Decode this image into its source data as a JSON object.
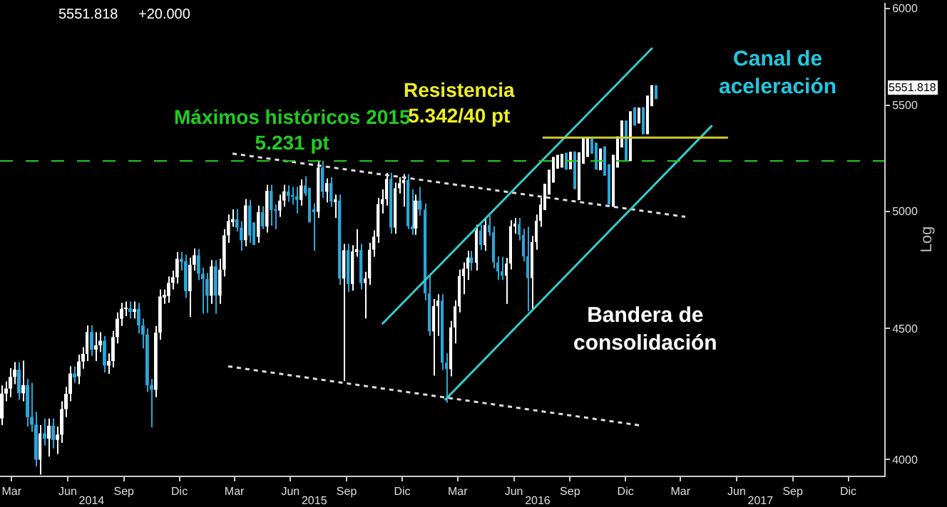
{
  "chart_data": {
    "type": "candlestick",
    "ylabel": "Log",
    "log": true,
    "grid": false,
    "xlim": [
      "2014-02-10",
      "2018-01-29"
    ],
    "xticks": [
      {
        "value": "2014-03-01",
        "label": "Mar"
      },
      {
        "value": "2014-06-01",
        "label": "Jun"
      },
      {
        "value": "2014-09-01",
        "label": "Sep"
      },
      {
        "value": "2014-12-01",
        "label": "Dic"
      },
      {
        "value": "2015-03-01",
        "label": "Mar"
      },
      {
        "value": "2015-06-01",
        "label": "Jun"
      },
      {
        "value": "2015-09-01",
        "label": "Sep"
      },
      {
        "value": "2015-12-01",
        "label": "Dic"
      },
      {
        "value": "2016-03-01",
        "label": "Mar"
      },
      {
        "value": "2016-06-01",
        "label": "Jun"
      },
      {
        "value": "2016-09-01",
        "label": "Sep"
      },
      {
        "value": "2016-12-01",
        "label": "Dic"
      },
      {
        "value": "2017-03-01",
        "label": "Mar"
      },
      {
        "value": "2017-06-01",
        "label": "Jun"
      },
      {
        "value": "2017-09-01",
        "label": "Sep"
      },
      {
        "value": "2017-12-01",
        "label": "Dic"
      }
    ],
    "x2lim": [
      "2014-02-10",
      "2018-01-29"
    ],
    "x2ticks": [
      {
        "value": "2014-07-10",
        "label": "2014"
      },
      {
        "value": "2015-07-10",
        "label": "2015"
      },
      {
        "value": "2016-07-10",
        "label": "2016"
      },
      {
        "value": "2017-07-10",
        "label": "2017"
      }
    ],
    "ylim": [
      3942,
      6030
    ],
    "yticks": [
      4000,
      4500,
      5000,
      5500,
      6000
    ],
    "annotations": [
      "5551.818",
      "+20.000",
      "Resistencia\n5.342/40 pt",
      "Canal de\naceleración",
      "Bandera de\nconsolidación",
      "5551.818"
    ],
    "ref_lines": [
      {
        "axis": "y",
        "value": 5231,
        "label": "Máximos históricos 2015\n5.231 pt",
        "color": "#22cc22",
        "line_style": "dashed"
      }
    ],
    "series": [
      {
        "color": "#ffffff",
        "x": [
          "2014-02-14",
          "2014-02-21",
          "2014-02-28",
          "2014-03-07",
          "2014-03-21",
          "2014-04-17",
          "2014-05-02",
          "2014-05-16",
          "2014-05-23",
          "2014-05-30",
          "2014-06-06",
          "2014-06-20",
          "2014-06-27",
          "2014-07-03",
          "2014-07-18",
          "2014-07-25",
          "2014-08-08",
          "2014-08-15",
          "2014-08-22",
          "2014-08-29",
          "2014-09-05",
          "2014-09-19",
          "2014-10-24",
          "2014-10-31",
          "2014-11-07",
          "2014-11-14",
          "2014-11-21",
          "2014-11-28",
          "2014-12-19",
          "2014-12-26",
          "2015-01-23",
          "2015-02-06",
          "2015-02-13",
          "2015-02-20",
          "2015-02-27",
          "2015-03-20",
          "2015-04-10",
          "2015-04-24",
          "2015-05-15",
          "2015-05-22",
          "2015-06-19",
          "2015-07-17",
          "2015-07-31",
          "2015-08-14",
          "2015-08-28",
          "2015-09-11",
          "2015-09-18",
          "2015-10-02",
          "2015-10-09",
          "2015-10-16",
          "2015-10-23",
          "2015-10-30",
          "2015-11-06",
          "2015-11-20",
          "2015-11-27",
          "2015-12-04",
          "2015-12-24",
          "2016-01-22",
          "2016-01-29",
          "2016-02-19",
          "2016-02-26",
          "2016-03-04",
          "2016-03-11",
          "2016-03-18",
          "2016-04-01",
          "2016-04-15",
          "2016-05-20",
          "2016-05-27",
          "2016-06-03",
          "2016-07-01",
          "2016-07-08",
          "2016-07-15",
          "2016-07-22",
          "2016-07-29",
          "2016-08-05",
          "2016-08-12",
          "2016-08-19",
          "2016-09-02",
          "2016-09-16",
          "2016-09-23",
          "2016-09-30",
          "2016-10-21",
          "2016-11-11",
          "2016-11-18",
          "2016-11-25",
          "2016-12-09",
          "2016-12-23",
          "2017-01-06",
          "2017-01-13"
        ],
        "ohlc": [
          [
            4150,
            4275,
            4125,
            4244
          ],
          [
            4244,
            4290,
            4215,
            4263
          ],
          [
            4263,
            4342,
            4230,
            4308
          ],
          [
            4308,
            4366,
            4280,
            4336
          ],
          [
            4245,
            4371,
            4215,
            4276
          ],
          [
            3999,
            4125,
            3946,
            4095
          ],
          [
            4075,
            4150,
            4010,
            4123
          ],
          [
            4071,
            4120,
            4020,
            4090
          ],
          [
            4090,
            4215,
            4060,
            4185
          ],
          [
            4185,
            4270,
            4155,
            4243
          ],
          [
            4243,
            4350,
            4215,
            4321
          ],
          [
            4310,
            4395,
            4280,
            4368
          ],
          [
            4368,
            4425,
            4340,
            4398
          ],
          [
            4398,
            4512,
            4370,
            4486
          ],
          [
            4415,
            4485,
            4370,
            4432
          ],
          [
            4432,
            4485,
            4405,
            4450
          ],
          [
            4352,
            4400,
            4320,
            4370
          ],
          [
            4370,
            4490,
            4345,
            4465
          ],
          [
            4465,
            4565,
            4440,
            4539
          ],
          [
            4539,
            4605,
            4510,
            4580
          ],
          [
            4580,
            4610,
            4550,
            4582
          ],
          [
            4567,
            4610,
            4540,
            4579
          ],
          [
            4258,
            4510,
            4230,
            4483
          ],
          [
            4483,
            4660,
            4455,
            4631
          ],
          [
            4631,
            4660,
            4600,
            4633
          ],
          [
            4633,
            4715,
            4605,
            4688
          ],
          [
            4688,
            4740,
            4660,
            4712
          ],
          [
            4712,
            4820,
            4685,
            4791
          ],
          [
            4653,
            4795,
            4547,
            4765
          ],
          [
            4765,
            4835,
            4740,
            4806
          ],
          [
            4634,
            4785,
            4600,
            4758
          ],
          [
            4635,
            4790,
            4600,
            4744
          ],
          [
            4744,
            4920,
            4715,
            4893
          ],
          [
            4893,
            4985,
            4860,
            4956
          ],
          [
            4956,
            5008,
            4930,
            4964
          ],
          [
            4871,
            5055,
            4845,
            5026
          ],
          [
            4886,
            5025,
            4860,
            4996
          ],
          [
            4932,
            5120,
            4905,
            5092
          ],
          [
            5003,
            5075,
            4975,
            5048
          ],
          [
            5048,
            5120,
            5020,
            5090
          ],
          [
            5051,
            5145,
            5025,
            5117
          ],
          [
            4997,
            5231,
            4970,
            5200
          ],
          [
            5088,
            5150,
            5040,
            5128
          ],
          [
            5044,
            5075,
            4970,
            5048
          ],
          [
            4706,
            4855,
            4292,
            4828
          ],
          [
            4683,
            4850,
            4655,
            4822
          ],
          [
            4822,
            4920,
            4800,
            4828
          ],
          [
            4687,
            4735,
            4540,
            4707
          ],
          [
            4707,
            4860,
            4680,
            4830
          ],
          [
            4830,
            4915,
            4800,
            4887
          ],
          [
            4887,
            5060,
            4860,
            5032
          ],
          [
            5032,
            5100,
            4990,
            5054
          ],
          [
            5054,
            5175,
            5025,
            5147
          ],
          [
            4927,
            5130,
            4900,
            5104
          ],
          [
            5104,
            5155,
            5080,
            5127
          ],
          [
            5127,
            5170,
            5020,
            5142
          ],
          [
            4923,
            5075,
            4895,
            5048
          ],
          [
            4488,
            4620,
            4313,
            4591
          ],
          [
            4591,
            4640,
            4470,
            4614
          ],
          [
            4338,
            4530,
            4310,
            4504
          ],
          [
            4504,
            4615,
            4440,
            4590
          ],
          [
            4590,
            4745,
            4565,
            4717
          ],
          [
            4717,
            4775,
            4640,
            4748
          ],
          [
            4748,
            4825,
            4700,
            4796
          ],
          [
            4773,
            4940,
            4740,
            4914
          ],
          [
            4850,
            4965,
            4825,
            4938
          ],
          [
            4718,
            4795,
            4600,
            4770
          ],
          [
            4770,
            4960,
            4745,
            4933
          ],
          [
            4933,
            4970,
            4900,
            4943
          ],
          [
            4708,
            4890,
            4580,
            4863
          ],
          [
            4863,
            4985,
            4830,
            4957
          ],
          [
            4957,
            5060,
            4930,
            5030
          ],
          [
            5030,
            5125,
            5005,
            5100
          ],
          [
            5100,
            5190,
            5075,
            5162
          ],
          [
            5162,
            5250,
            5130,
            5221
          ],
          [
            5221,
            5260,
            5195,
            5233
          ],
          [
            5233,
            5265,
            5200,
            5238
          ],
          [
            5219,
            5275,
            5192,
            5250
          ],
          [
            5126,
            5272,
            5050,
            5245
          ],
          [
            5245,
            5340,
            5218,
            5306
          ],
          [
            5306,
            5340,
            5250,
            5312
          ],
          [
            5214,
            5290,
            5188,
            5257
          ],
          [
            5046,
            5260,
            5020,
            5237
          ],
          [
            5237,
            5348,
            5200,
            5321
          ],
          [
            5321,
            5425,
            5295,
            5399
          ],
          [
            5255,
            5470,
            5230,
            5444
          ],
          [
            5437,
            5488,
            5410,
            5462
          ],
          [
            5383,
            5548,
            5358,
            5521
          ],
          [
            5521,
            5600,
            5495,
            5574
          ]
        ]
      },
      {
        "color": "#2aa6d8",
        "x": [
          "2014-03-14",
          "2014-03-28",
          "2014-04-04",
          "2014-04-11",
          "2014-04-25",
          "2014-05-09",
          "2014-06-13",
          "2014-07-11",
          "2014-08-01",
          "2014-09-12",
          "2014-09-26",
          "2014-10-03",
          "2014-10-10",
          "2014-10-17",
          "2014-12-05",
          "2014-12-12",
          "2015-01-02",
          "2015-01-09",
          "2015-01-16",
          "2015-01-30",
          "2015-03-06",
          "2015-03-13",
          "2015-03-27",
          "2015-04-02",
          "2015-04-17",
          "2015-05-01",
          "2015-05-08",
          "2015-05-29",
          "2015-06-05",
          "2015-06-12",
          "2015-06-26",
          "2015-07-02",
          "2015-07-10",
          "2015-07-24",
          "2015-08-07",
          "2015-08-21",
          "2015-09-04",
          "2015-09-25",
          "2015-11-13",
          "2015-12-11",
          "2015-12-18",
          "2015-12-31",
          "2016-01-08",
          "2016-01-15",
          "2016-02-05",
          "2016-02-12",
          "2016-03-24",
          "2016-04-08",
          "2016-04-22",
          "2016-04-29",
          "2016-05-06",
          "2016-05-13",
          "2016-06-10",
          "2016-06-17",
          "2016-06-24",
          "2016-08-26",
          "2016-09-09",
          "2016-10-07",
          "2016-10-14",
          "2016-10-28",
          "2016-11-04",
          "2016-12-02",
          "2016-12-16",
          "2016-12-30",
          "2017-01-20"
        ],
        "ohlc": [
          [
            4336,
            4365,
            4220,
            4245
          ],
          [
            4276,
            4300,
            4120,
            4155
          ],
          [
            4155,
            4285,
            4100,
            4127
          ],
          [
            4127,
            4175,
            3975,
            3999
          ],
          [
            4095,
            4150,
            4050,
            4075
          ],
          [
            4123,
            4150,
            4040,
            4071
          ],
          [
            4321,
            4348,
            4285,
            4310
          ],
          [
            4486,
            4512,
            4390,
            4415
          ],
          [
            4450,
            4470,
            4325,
            4352
          ],
          [
            4582,
            4610,
            4540,
            4567
          ],
          [
            4579,
            4605,
            4480,
            4512
          ],
          [
            4512,
            4540,
            4420,
            4475
          ],
          [
            4475,
            4500,
            4250,
            4276
          ],
          [
            4276,
            4300,
            4117,
            4258
          ],
          [
            4791,
            4820,
            4740,
            4780
          ],
          [
            4780,
            4808,
            4625,
            4653
          ],
          [
            4806,
            4833,
            4700,
            4727
          ],
          [
            4727,
            4753,
            4560,
            4704
          ],
          [
            4704,
            4730,
            4563,
            4634
          ],
          [
            4758,
            4785,
            4560,
            4635
          ],
          [
            4964,
            5010,
            4910,
            4927
          ],
          [
            4927,
            4955,
            4825,
            4871
          ],
          [
            5026,
            5052,
            4860,
            4892
          ],
          [
            4892,
            4950,
            4850,
            4886
          ],
          [
            4996,
            5023,
            4920,
            4932
          ],
          [
            5092,
            5120,
            4935,
            5005
          ],
          [
            5005,
            5030,
            4920,
            5003
          ],
          [
            5090,
            5118,
            5042,
            5070
          ],
          [
            5070,
            5110,
            5030,
            5068
          ],
          [
            5068,
            5110,
            4990,
            5051
          ],
          [
            5117,
            5160,
            5070,
            5080
          ],
          [
            5080,
            5106,
            4950,
            5009
          ],
          [
            5009,
            5036,
            4825,
            4997
          ],
          [
            5200,
            5231,
            5060,
            5088
          ],
          [
            5128,
            5155,
            5020,
            5044
          ],
          [
            5048,
            5075,
            4680,
            4706
          ],
          [
            4828,
            4855,
            4650,
            4683
          ],
          [
            4828,
            4855,
            4660,
            4687
          ],
          [
            5147,
            5175,
            4900,
            4927
          ],
          [
            5142,
            5170,
            4920,
            4933
          ],
          [
            4933,
            5100,
            4895,
            4923
          ],
          [
            5048,
            5110,
            4980,
            5007
          ],
          [
            5007,
            5035,
            4615,
            4644
          ],
          [
            4644,
            4720,
            4470,
            4488
          ],
          [
            4614,
            4640,
            4335,
            4363
          ],
          [
            4363,
            4400,
            4209,
            4338
          ],
          [
            4796,
            4825,
            4740,
            4773
          ],
          [
            4914,
            4940,
            4830,
            4850
          ],
          [
            4938,
            4980,
            4890,
            4906
          ],
          [
            4906,
            4933,
            4750,
            4775
          ],
          [
            4775,
            4802,
            4700,
            4737
          ],
          [
            4737,
            4800,
            4700,
            4718
          ],
          [
            4943,
            4970,
            4870,
            4895
          ],
          [
            4895,
            4922,
            4780,
            4801
          ],
          [
            4801,
            4930,
            4570,
            4708
          ],
          [
            5238,
            5270,
            5190,
            5219
          ],
          [
            5250,
            5276,
            5100,
            5126
          ],
          [
            5312,
            5338,
            5265,
            5292
          ],
          [
            5292,
            5318,
            5190,
            5214
          ],
          [
            5257,
            5300,
            5162,
            5190
          ],
          [
            5190,
            5216,
            5030,
            5046
          ],
          [
            5399,
            5425,
            5230,
            5255
          ],
          [
            5444,
            5490,
            5400,
            5437
          ],
          [
            5462,
            5490,
            5358,
            5383
          ],
          [
            5574,
            5600,
            5530,
            5551.818
          ]
        ]
      },
      {
        "type": "line",
        "color": "#dddddd",
        "line_style": "dotted",
        "x": [
          "2015-02-26",
          "2017-03-09"
        ],
        "values": [
          5266,
          4975
        ]
      },
      {
        "type": "line",
        "color": "#dddddd",
        "line_style": "dotted",
        "x": [
          "2015-02-19",
          "2016-12-29"
        ],
        "values": [
          4349,
          4123
        ]
      },
      {
        "type": "line",
        "color": "#33cccc",
        "line_style": "solid",
        "x": [
          "2015-10-29",
          "2017-01-14"
        ],
        "values": [
          4517,
          5791
        ]
      },
      {
        "type": "line",
        "color": "#33cccc",
        "line_style": "solid",
        "x": [
          "2016-02-09",
          "2017-04-22"
        ],
        "values": [
          4219,
          5401
        ]
      },
      {
        "type": "line",
        "color": "#cccc33",
        "line_style": "solid",
        "x": [
          "2016-07-18",
          "2017-05-18"
        ],
        "values": [
          5342,
          5342
        ]
      }
    ]
  }
}
